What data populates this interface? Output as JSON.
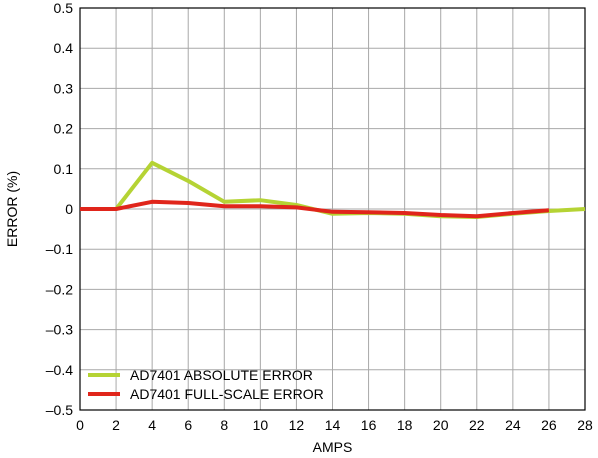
{
  "chart_data": {
    "type": "line",
    "xlabel": "AMPS",
    "ylabel": "ERROR (%)",
    "xlim": [
      0,
      28
    ],
    "ylim": [
      -0.5,
      0.5
    ],
    "x_ticks": [
      "0",
      "2",
      "4",
      "6",
      "8",
      "10",
      "12",
      "14",
      "16",
      "18",
      "20",
      "22",
      "24",
      "26",
      "28"
    ],
    "y_ticks": [
      "0.5",
      "0.4",
      "0.3",
      "0.2",
      "0.1",
      "0",
      "–0.1",
      "–0.2",
      "–0.3",
      "–0.4",
      "–0.5"
    ],
    "y_tick_values": [
      0.5,
      0.4,
      0.3,
      0.2,
      0.1,
      0,
      -0.1,
      -0.2,
      -0.3,
      -0.4,
      -0.5
    ],
    "grid": true,
    "legend_position": "bottom-left",
    "series": [
      {
        "name": "AD7401 ABSOLUTE ERROR",
        "color": "#b5d334",
        "x": [
          0,
          2,
          4,
          6,
          8,
          10,
          12,
          14,
          16,
          18,
          20,
          22,
          24,
          26,
          28
        ],
        "values": [
          0,
          0,
          0.115,
          0.07,
          0.018,
          0.022,
          0.01,
          -0.012,
          -0.01,
          -0.012,
          -0.018,
          -0.02,
          -0.012,
          -0.005,
          0
        ]
      },
      {
        "name": "AD7401 FULL-SCALE ERROR",
        "color": "#e0251b",
        "x": [
          0,
          2,
          4,
          6,
          8,
          10,
          12,
          14,
          16,
          18,
          20,
          22,
          24,
          26
        ],
        "values": [
          0,
          0,
          0.018,
          0.015,
          0.007,
          0.007,
          0.004,
          -0.007,
          -0.008,
          -0.01,
          -0.015,
          -0.018,
          -0.01,
          -0.003
        ]
      }
    ]
  }
}
